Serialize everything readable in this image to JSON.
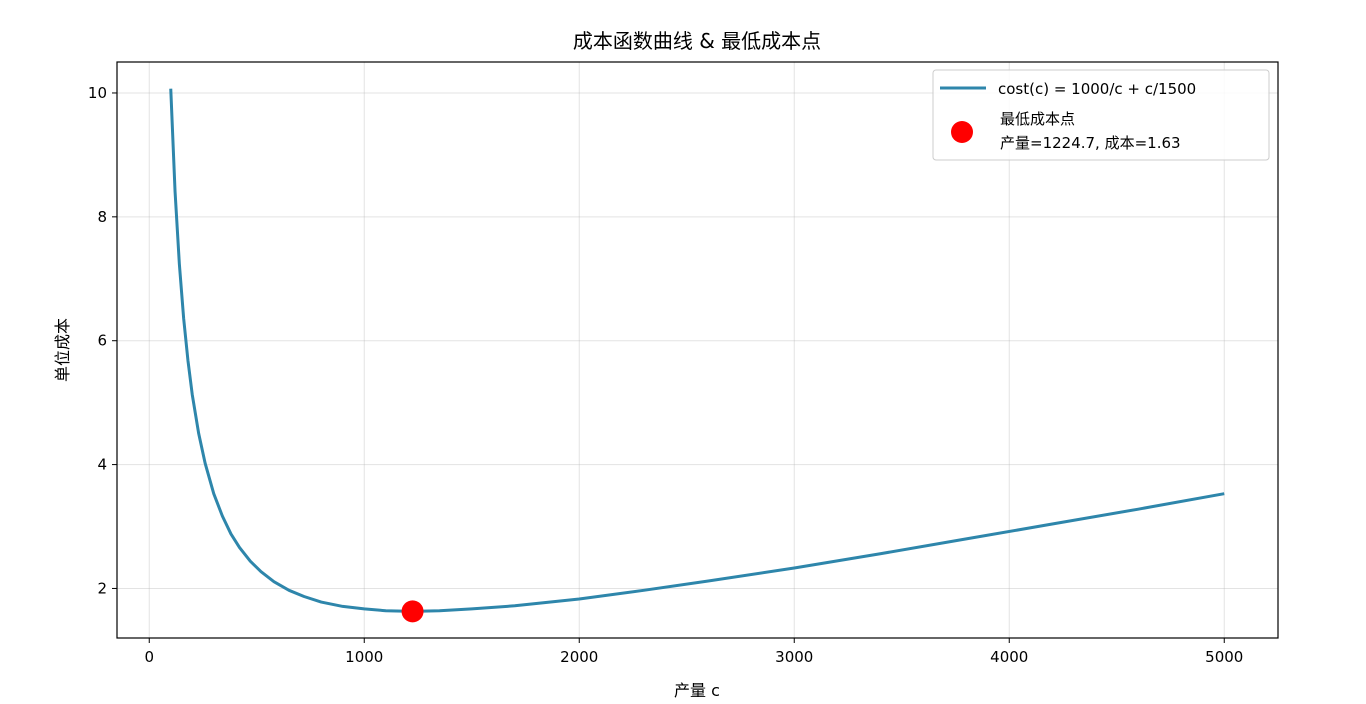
{
  "chart_data": {
    "type": "line",
    "title": "成本函数曲线 & 最低成本点",
    "xlabel": "产量 c",
    "ylabel": "单位成本",
    "xlim": [
      -150,
      5250
    ],
    "ylim": [
      1.2,
      10.5
    ],
    "x_ticks": [
      0,
      1000,
      2000,
      3000,
      4000,
      5000
    ],
    "x_tick_labels": [
      "0",
      "1000",
      "2000",
      "3000",
      "4000",
      "5000"
    ],
    "y_ticks": [
      2,
      4,
      6,
      8,
      10
    ],
    "y_tick_labels": [
      "2",
      "4",
      "6",
      "8",
      "10"
    ],
    "grid": true,
    "legend_position": "top-right",
    "series": [
      {
        "name": "cost(c) = 1000/c + c/1500",
        "kind": "line",
        "color": "#2e86ab",
        "x": [
          100,
          120,
          140,
          160,
          180,
          200,
          230,
          260,
          300,
          340,
          380,
          420,
          470,
          520,
          580,
          650,
          720,
          800,
          900,
          1000,
          1100,
          1224.7,
          1350,
          1500,
          1700,
          2000,
          2300,
          2600,
          3000,
          3400,
          3800,
          4200,
          4600,
          5000
        ],
        "y": [
          10.07,
          8.41,
          7.24,
          6.36,
          5.68,
          5.13,
          4.5,
          4.02,
          3.53,
          3.17,
          2.88,
          2.66,
          2.44,
          2.27,
          2.11,
          1.97,
          1.87,
          1.78,
          1.71,
          1.67,
          1.64,
          1.63,
          1.64,
          1.67,
          1.72,
          1.83,
          1.97,
          2.12,
          2.33,
          2.56,
          2.8,
          3.04,
          3.28,
          3.53
        ]
      },
      {
        "name": "最低成本点",
        "name_line2": "产量=1224.7, 成本=1.63",
        "kind": "point",
        "color": "#ff0000",
        "x": [
          1224.7
        ],
        "y": [
          1.63
        ]
      }
    ]
  }
}
